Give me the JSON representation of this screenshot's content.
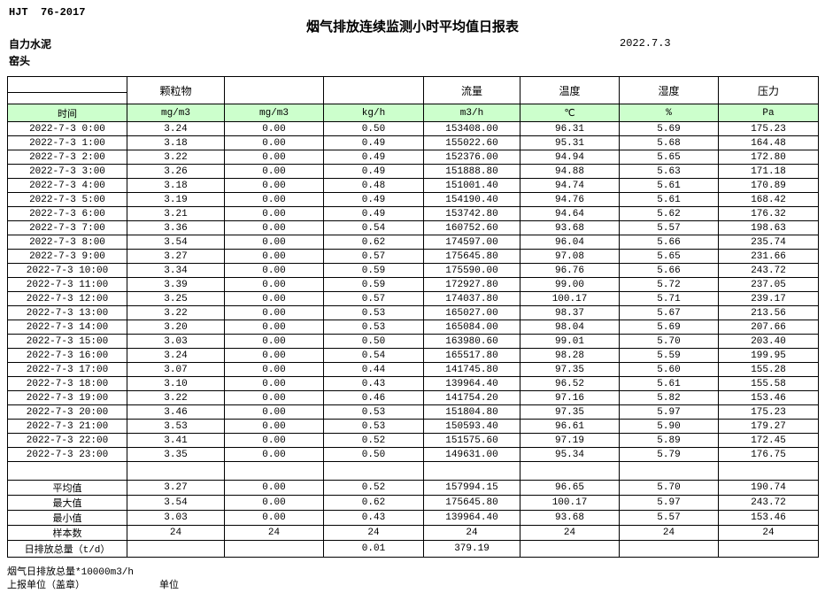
{
  "meta": {
    "standard": "HJT  76-2017",
    "title": "烟气排放连续监测小时平均值日报表",
    "company": "自力水泥",
    "unit_name": "窑头",
    "date": "2022.7.3"
  },
  "table": {
    "group_headers": [
      "",
      "颗粒物",
      "",
      "",
      "流量",
      "温度",
      "湿度",
      "压力"
    ],
    "unit_headers": [
      "时间",
      "mg/m3",
      "mg/m3",
      "kg/h",
      "m3/h",
      "℃",
      "%",
      "Pa"
    ],
    "rows": [
      [
        "2022-7-3 0:00",
        "3.24",
        "0.00",
        "0.50",
        "153408.00",
        "96.31",
        "5.69",
        "175.23"
      ],
      [
        "2022-7-3 1:00",
        "3.18",
        "0.00",
        "0.49",
        "155022.60",
        "95.31",
        "5.68",
        "164.48"
      ],
      [
        "2022-7-3 2:00",
        "3.22",
        "0.00",
        "0.49",
        "152376.00",
        "94.94",
        "5.65",
        "172.80"
      ],
      [
        "2022-7-3 3:00",
        "3.26",
        "0.00",
        "0.49",
        "151888.80",
        "94.88",
        "5.63",
        "171.18"
      ],
      [
        "2022-7-3 4:00",
        "3.18",
        "0.00",
        "0.48",
        "151001.40",
        "94.74",
        "5.61",
        "170.89"
      ],
      [
        "2022-7-3 5:00",
        "3.19",
        "0.00",
        "0.49",
        "154190.40",
        "94.76",
        "5.61",
        "168.42"
      ],
      [
        "2022-7-3 6:00",
        "3.21",
        "0.00",
        "0.49",
        "153742.80",
        "94.64",
        "5.62",
        "176.32"
      ],
      [
        "2022-7-3 7:00",
        "3.36",
        "0.00",
        "0.54",
        "160752.60",
        "93.68",
        "5.57",
        "198.63"
      ],
      [
        "2022-7-3 8:00",
        "3.54",
        "0.00",
        "0.62",
        "174597.00",
        "96.04",
        "5.66",
        "235.74"
      ],
      [
        "2022-7-3 9:00",
        "3.27",
        "0.00",
        "0.57",
        "175645.80",
        "97.08",
        "5.65",
        "231.66"
      ],
      [
        "2022-7-3 10:00",
        "3.34",
        "0.00",
        "0.59",
        "175590.00",
        "96.76",
        "5.66",
        "243.72"
      ],
      [
        "2022-7-3 11:00",
        "3.39",
        "0.00",
        "0.59",
        "172927.80",
        "99.00",
        "5.72",
        "237.05"
      ],
      [
        "2022-7-3 12:00",
        "3.25",
        "0.00",
        "0.57",
        "174037.80",
        "100.17",
        "5.71",
        "239.17"
      ],
      [
        "2022-7-3 13:00",
        "3.22",
        "0.00",
        "0.53",
        "165027.00",
        "98.37",
        "5.67",
        "213.56"
      ],
      [
        "2022-7-3 14:00",
        "3.20",
        "0.00",
        "0.53",
        "165084.00",
        "98.04",
        "5.69",
        "207.66"
      ],
      [
        "2022-7-3 15:00",
        "3.03",
        "0.00",
        "0.50",
        "163980.60",
        "99.01",
        "5.70",
        "203.40"
      ],
      [
        "2022-7-3 16:00",
        "3.24",
        "0.00",
        "0.54",
        "165517.80",
        "98.28",
        "5.59",
        "199.95"
      ],
      [
        "2022-7-3 17:00",
        "3.07",
        "0.00",
        "0.44",
        "141745.80",
        "97.35",
        "5.60",
        "155.28"
      ],
      [
        "2022-7-3 18:00",
        "3.10",
        "0.00",
        "0.43",
        "139964.40",
        "96.52",
        "5.61",
        "155.58"
      ],
      [
        "2022-7-3 19:00",
        "3.22",
        "0.00",
        "0.46",
        "141754.20",
        "97.16",
        "5.82",
        "153.46"
      ],
      [
        "2022-7-3 20:00",
        "3.46",
        "0.00",
        "0.53",
        "151804.80",
        "97.35",
        "5.97",
        "175.23"
      ],
      [
        "2022-7-3 21:00",
        "3.53",
        "0.00",
        "0.53",
        "150593.40",
        "96.61",
        "5.90",
        "179.27"
      ],
      [
        "2022-7-3 22:00",
        "3.41",
        "0.00",
        "0.52",
        "151575.60",
        "97.19",
        "5.89",
        "172.45"
      ],
      [
        "2022-7-3 23:00",
        "3.35",
        "0.00",
        "0.50",
        "149631.00",
        "95.34",
        "5.79",
        "176.75"
      ]
    ],
    "summary_rows": [
      [
        "平均值",
        "3.27",
        "0.00",
        "0.52",
        "157994.15",
        "96.65",
        "5.70",
        "190.74"
      ],
      [
        "最大值",
        "3.54",
        "0.00",
        "0.62",
        "175645.80",
        "100.17",
        "5.97",
        "243.72"
      ],
      [
        "最小值",
        "3.03",
        "0.00",
        "0.43",
        "139964.40",
        "93.68",
        "5.57",
        "153.46"
      ],
      [
        "样本数",
        "24",
        "24",
        "24",
        "24",
        "24",
        "24",
        "24"
      ],
      [
        "日排放总量（t/d）",
        "",
        "",
        "0.01",
        "379.19",
        "",
        "",
        ""
      ]
    ]
  },
  "footer": {
    "footnote": "烟气日排放总量*10000m3/h",
    "report_org_label": "上报单位（盖章）",
    "unit_label": "单位"
  }
}
